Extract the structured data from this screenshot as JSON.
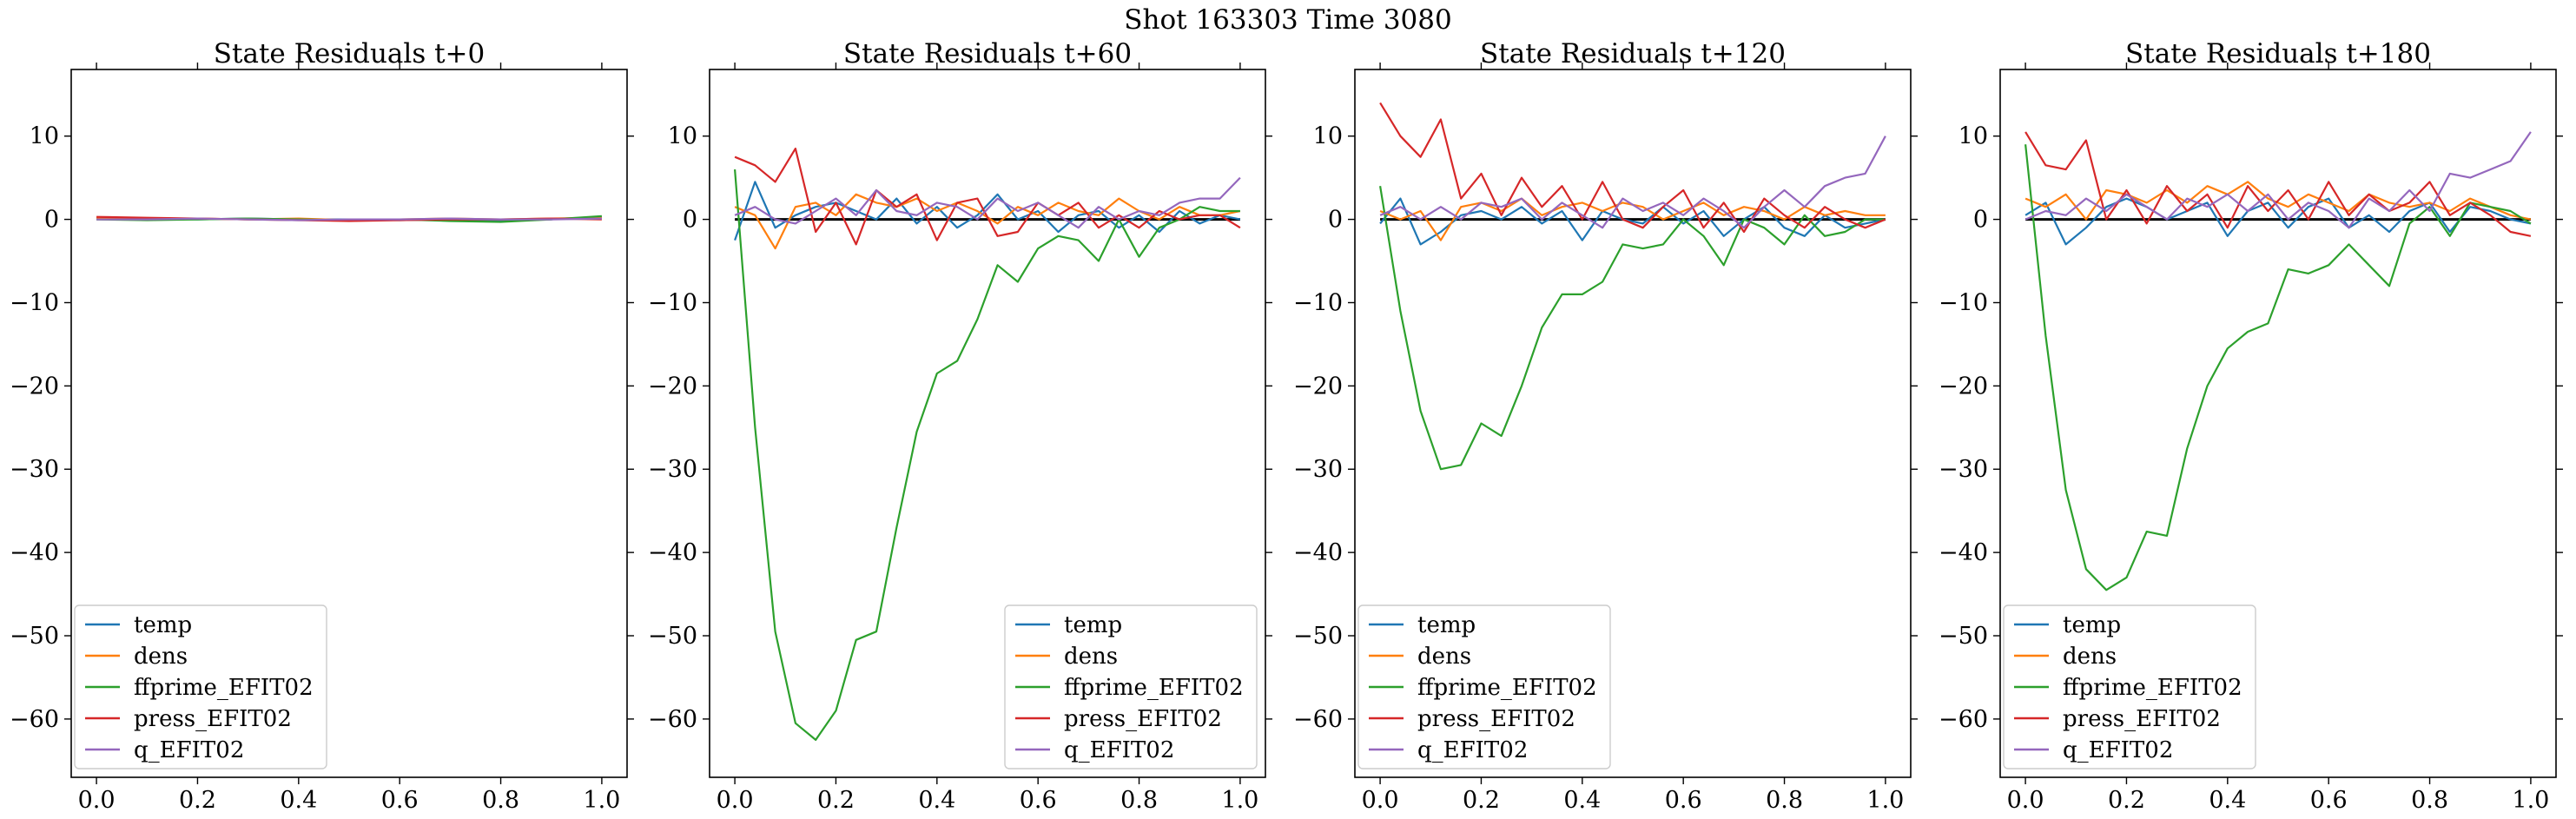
{
  "figure_title": "Shot 163303   Time 3080",
  "chart_data": [
    {
      "type": "line",
      "title": "State Residuals t+0",
      "xlim": [
        -0.05,
        1.05
      ],
      "ylim": [
        -67,
        18
      ],
      "xticks": [
        0.0,
        0.2,
        0.4,
        0.6,
        0.8,
        1.0
      ],
      "xtick_labels": [
        "0.0",
        "0.2",
        "0.4",
        "0.6",
        "0.8",
        "1.0"
      ],
      "yticks": [
        10,
        0,
        -10,
        -20,
        -30,
        -40,
        -50,
        -60
      ],
      "ytick_labels": [
        "10",
        "0",
        "−10",
        "−20",
        "−30",
        "−40",
        "−50",
        "−60"
      ],
      "legend_position": "lower-left",
      "zero_line": false,
      "x": [
        0.0,
        0.1,
        0.2,
        0.3,
        0.4,
        0.5,
        0.6,
        0.7,
        0.8,
        0.9,
        1.0
      ],
      "series": [
        {
          "name": "temp",
          "color": "#1f77b4",
          "values": [
            0.1,
            0.1,
            0.0,
            0.1,
            0.0,
            0.0,
            -0.1,
            0.0,
            -0.1,
            0.0,
            0.3
          ]
        },
        {
          "name": "dens",
          "color": "#ff7f0e",
          "values": [
            0.2,
            0.1,
            0.1,
            0.0,
            0.1,
            -0.1,
            0.0,
            0.1,
            0.0,
            0.1,
            0.2
          ]
        },
        {
          "name": "ffprime_EFIT02",
          "color": "#2ca02c",
          "values": [
            0.0,
            -0.1,
            0.0,
            0.1,
            0.0,
            -0.1,
            0.0,
            -0.2,
            -0.3,
            0.0,
            0.4
          ]
        },
        {
          "name": "press_EFIT02",
          "color": "#d62728",
          "values": [
            0.3,
            0.2,
            0.1,
            0.0,
            -0.1,
            -0.2,
            -0.1,
            0.0,
            0.0,
            0.1,
            0.0
          ]
        },
        {
          "name": "q_EFIT02",
          "color": "#9467bd",
          "values": [
            0.0,
            0.0,
            0.1,
            0.0,
            -0.1,
            0.0,
            0.0,
            0.1,
            0.0,
            0.0,
            0.1
          ]
        }
      ]
    },
    {
      "type": "line",
      "title": "State Residuals t+60",
      "xlim": [
        -0.05,
        1.05
      ],
      "ylim": [
        -67,
        18
      ],
      "xticks": [
        0.0,
        0.2,
        0.4,
        0.6,
        0.8,
        1.0
      ],
      "xtick_labels": [
        "0.0",
        "0.2",
        "0.4",
        "0.6",
        "0.8",
        "1.0"
      ],
      "yticks": [
        10,
        0,
        -10,
        -20,
        -30,
        -40,
        -50,
        -60
      ],
      "ytick_labels": [
        "10",
        "0",
        "−10",
        "−20",
        "−30",
        "−40",
        "−50",
        "−60"
      ],
      "legend_position": "lower-right",
      "zero_line": true,
      "x": [
        0.0,
        0.04,
        0.08,
        0.12,
        0.16,
        0.2,
        0.24,
        0.28,
        0.32,
        0.36,
        0.4,
        0.44,
        0.48,
        0.52,
        0.56,
        0.6,
        0.64,
        0.68,
        0.72,
        0.76,
        0.8,
        0.84,
        0.88,
        0.92,
        0.96,
        1.0
      ],
      "series": [
        {
          "name": "temp",
          "color": "#1f77b4",
          "values": [
            -2.5,
            4.5,
            -1.0,
            0.5,
            1.5,
            2.0,
            1.0,
            0.0,
            2.5,
            -0.5,
            1.5,
            -1.0,
            0.5,
            3.0,
            0.0,
            1.0,
            -1.5,
            0.5,
            1.0,
            -1.0,
            0.5,
            -1.5,
            1.0,
            -0.5,
            0.5,
            0.0
          ]
        },
        {
          "name": "dens",
          "color": "#ff7f0e",
          "values": [
            1.5,
            0.5,
            -3.5,
            1.5,
            2.0,
            0.5,
            3.0,
            2.0,
            1.5,
            2.5,
            1.0,
            2.0,
            1.0,
            -0.5,
            1.5,
            0.5,
            2.0,
            1.0,
            0.5,
            2.5,
            1.0,
            0.0,
            1.5,
            0.5,
            0.5,
            1.0
          ]
        },
        {
          "name": "ffprime_EFIT02",
          "color": "#2ca02c",
          "values": [
            6.0,
            -25.0,
            -49.5,
            -60.5,
            -62.5,
            -59.0,
            -50.5,
            -49.5,
            -37.0,
            -25.5,
            -18.5,
            -17.0,
            -12.0,
            -5.5,
            -7.5,
            -3.5,
            -2.0,
            -2.5,
            -5.0,
            0.0,
            -4.5,
            -1.0,
            0.0,
            1.5,
            1.0,
            1.0
          ]
        },
        {
          "name": "press_EFIT02",
          "color": "#d62728",
          "values": [
            7.5,
            6.5,
            4.5,
            8.5,
            -1.5,
            2.0,
            -3.0,
            3.5,
            1.5,
            3.0,
            -2.5,
            2.0,
            2.5,
            -2.0,
            -1.5,
            2.0,
            0.5,
            2.0,
            -1.0,
            0.5,
            -1.0,
            1.0,
            0.0,
            0.5,
            0.5,
            -1.0
          ]
        },
        {
          "name": "q_EFIT02",
          "color": "#9467bd",
          "values": [
            0.5,
            1.5,
            0.0,
            -0.5,
            1.0,
            2.5,
            0.5,
            3.5,
            1.0,
            0.5,
            2.0,
            1.5,
            0.0,
            2.5,
            1.0,
            2.0,
            0.5,
            -1.0,
            1.5,
            0.0,
            1.0,
            0.5,
            2.0,
            2.5,
            2.5,
            5.0
          ]
        }
      ]
    },
    {
      "type": "line",
      "title": "State Residuals t+120",
      "xlim": [
        -0.05,
        1.05
      ],
      "ylim": [
        -67,
        18
      ],
      "xticks": [
        0.0,
        0.2,
        0.4,
        0.6,
        0.8,
        1.0
      ],
      "xtick_labels": [
        "0.0",
        "0.2",
        "0.4",
        "0.6",
        "0.8",
        "1.0"
      ],
      "yticks": [
        10,
        0,
        -10,
        -20,
        -30,
        -40,
        -50,
        -60
      ],
      "ytick_labels": [
        "10",
        "0",
        "−10",
        "−20",
        "−30",
        "−40",
        "−50",
        "−60"
      ],
      "legend_position": "lower-left",
      "zero_line": true,
      "x": [
        0.0,
        0.04,
        0.08,
        0.12,
        0.16,
        0.2,
        0.24,
        0.28,
        0.32,
        0.36,
        0.4,
        0.44,
        0.48,
        0.52,
        0.56,
        0.6,
        0.64,
        0.68,
        0.72,
        0.76,
        0.8,
        0.84,
        0.88,
        0.92,
        0.96,
        1.0
      ],
      "series": [
        {
          "name": "temp",
          "color": "#1f77b4",
          "values": [
            -0.5,
            2.5,
            -3.0,
            -1.5,
            0.5,
            1.0,
            0.0,
            1.5,
            -0.5,
            1.0,
            -2.5,
            1.0,
            0.0,
            -0.5,
            1.5,
            -0.5,
            1.0,
            -2.0,
            0.0,
            1.5,
            -1.0,
            -2.0,
            0.5,
            -1.0,
            -0.5,
            0.0
          ]
        },
        {
          "name": "dens",
          "color": "#ff7f0e",
          "values": [
            1.0,
            0.0,
            1.0,
            -2.5,
            1.5,
            2.0,
            1.0,
            2.5,
            0.5,
            1.5,
            2.0,
            1.0,
            2.0,
            1.5,
            0.0,
            1.0,
            2.0,
            0.5,
            1.5,
            1.0,
            0.0,
            1.5,
            0.5,
            1.0,
            0.5,
            0.5
          ]
        },
        {
          "name": "ffprime_EFIT02",
          "color": "#2ca02c",
          "values": [
            4.0,
            -11.0,
            -23.0,
            -30.0,
            -29.5,
            -24.5,
            -26.0,
            -20.0,
            -13.0,
            -9.0,
            -9.0,
            -7.5,
            -3.0,
            -3.5,
            -3.0,
            0.0,
            -2.0,
            -5.5,
            0.0,
            -1.0,
            -3.0,
            0.5,
            -2.0,
            -1.5,
            0.0,
            0.0
          ]
        },
        {
          "name": "press_EFIT02",
          "color": "#d62728",
          "values": [
            14.0,
            10.0,
            7.5,
            12.0,
            2.5,
            5.5,
            0.5,
            5.0,
            1.5,
            4.0,
            0.0,
            4.5,
            0.0,
            -1.0,
            1.5,
            3.5,
            -1.0,
            2.0,
            -1.5,
            2.5,
            0.5,
            -1.0,
            1.5,
            0.0,
            -1.0,
            0.0
          ]
        },
        {
          "name": "q_EFIT02",
          "color": "#9467bd",
          "values": [
            0.5,
            1.5,
            0.0,
            1.5,
            0.0,
            2.0,
            1.5,
            2.5,
            0.0,
            2.0,
            0.5,
            -1.0,
            2.5,
            1.0,
            2.0,
            0.5,
            2.5,
            1.0,
            -1.0,
            1.5,
            3.5,
            1.5,
            4.0,
            5.0,
            5.5,
            10.0
          ]
        }
      ]
    },
    {
      "type": "line",
      "title": "State Residuals t+180",
      "xlim": [
        -0.05,
        1.05
      ],
      "ylim": [
        -67,
        18
      ],
      "xticks": [
        0.0,
        0.2,
        0.4,
        0.6,
        0.8,
        1.0
      ],
      "xtick_labels": [
        "0.0",
        "0.2",
        "0.4",
        "0.6",
        "0.8",
        "1.0"
      ],
      "yticks": [
        10,
        0,
        -10,
        -20,
        -30,
        -40,
        -50,
        -60
      ],
      "ytick_labels": [
        "10",
        "0",
        "−10",
        "−20",
        "−30",
        "−40",
        "−50",
        "−60"
      ],
      "legend_position": "lower-left",
      "zero_line": true,
      "x": [
        0.0,
        0.04,
        0.08,
        0.12,
        0.16,
        0.2,
        0.24,
        0.28,
        0.32,
        0.36,
        0.4,
        0.44,
        0.48,
        0.52,
        0.56,
        0.6,
        0.64,
        0.68,
        0.72,
        0.76,
        0.8,
        0.84,
        0.88,
        0.92,
        0.96,
        1.0
      ],
      "series": [
        {
          "name": "temp",
          "color": "#1f77b4",
          "values": [
            0.5,
            2.0,
            -3.0,
            -1.0,
            1.5,
            2.5,
            1.5,
            0.0,
            1.0,
            2.0,
            -2.0,
            1.0,
            2.0,
            -1.0,
            1.5,
            2.5,
            -1.0,
            0.5,
            -1.5,
            1.0,
            2.0,
            -1.5,
            1.5,
            1.0,
            0.0,
            -0.5
          ]
        },
        {
          "name": "dens",
          "color": "#ff7f0e",
          "values": [
            2.5,
            1.5,
            3.0,
            0.0,
            3.5,
            3.0,
            2.0,
            3.5,
            2.0,
            4.0,
            3.0,
            4.5,
            2.5,
            1.5,
            3.0,
            2.0,
            1.0,
            3.0,
            2.0,
            1.5,
            2.0,
            1.0,
            2.5,
            1.5,
            0.5,
            0.0
          ]
        },
        {
          "name": "ffprime_EFIT02",
          "color": "#2ca02c",
          "values": [
            9.0,
            -14.0,
            -32.5,
            -42.0,
            -44.5,
            -43.0,
            -37.5,
            -38.0,
            -27.5,
            -20.0,
            -15.5,
            -13.5,
            -12.5,
            -6.0,
            -6.5,
            -5.5,
            -3.0,
            -5.5,
            -8.0,
            -0.5,
            1.5,
            -2.0,
            2.0,
            1.5,
            1.0,
            -0.5
          ]
        },
        {
          "name": "press_EFIT02",
          "color": "#d62728",
          "values": [
            10.5,
            6.5,
            6.0,
            9.5,
            0.0,
            3.5,
            -0.5,
            4.0,
            1.0,
            3.0,
            -1.0,
            4.0,
            1.0,
            3.5,
            0.0,
            4.5,
            0.5,
            3.0,
            1.0,
            2.0,
            4.5,
            0.5,
            2.0,
            0.5,
            -1.5,
            -2.0
          ]
        },
        {
          "name": "q_EFIT02",
          "color": "#9467bd",
          "values": [
            0.0,
            1.0,
            0.5,
            2.5,
            1.0,
            3.0,
            1.5,
            0.0,
            2.5,
            1.5,
            3.0,
            1.0,
            3.0,
            0.0,
            2.0,
            1.0,
            -1.0,
            2.5,
            1.0,
            3.5,
            1.0,
            5.5,
            5.0,
            6.0,
            7.0,
            10.5
          ]
        }
      ]
    }
  ]
}
